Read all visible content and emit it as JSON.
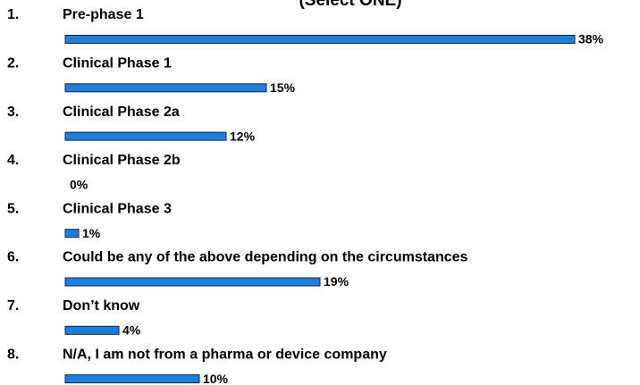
{
  "chart_data": {
    "type": "bar",
    "subtitle": "(Select ONE)",
    "item_numbers": [
      "1.",
      "2.",
      "3.",
      "4.",
      "5.",
      "6.",
      "7.",
      "8."
    ],
    "categories": [
      "Pre-phase 1",
      "Clinical Phase 1",
      "Clinical Phase 2a",
      "Clinical Phase 2b",
      "Clinical Phase 3",
      "Could be any of the above depending on the circumstances",
      "Don’t know",
      "N/A, I am not from a pharma or device company"
    ],
    "values": [
      38,
      15,
      12,
      0,
      1,
      19,
      4,
      10
    ],
    "value_labels": [
      "38%",
      "15%",
      "12%",
      "0%",
      "1%",
      "19%",
      "4%",
      "10%"
    ],
    "color": "#1f7fd8"
  }
}
